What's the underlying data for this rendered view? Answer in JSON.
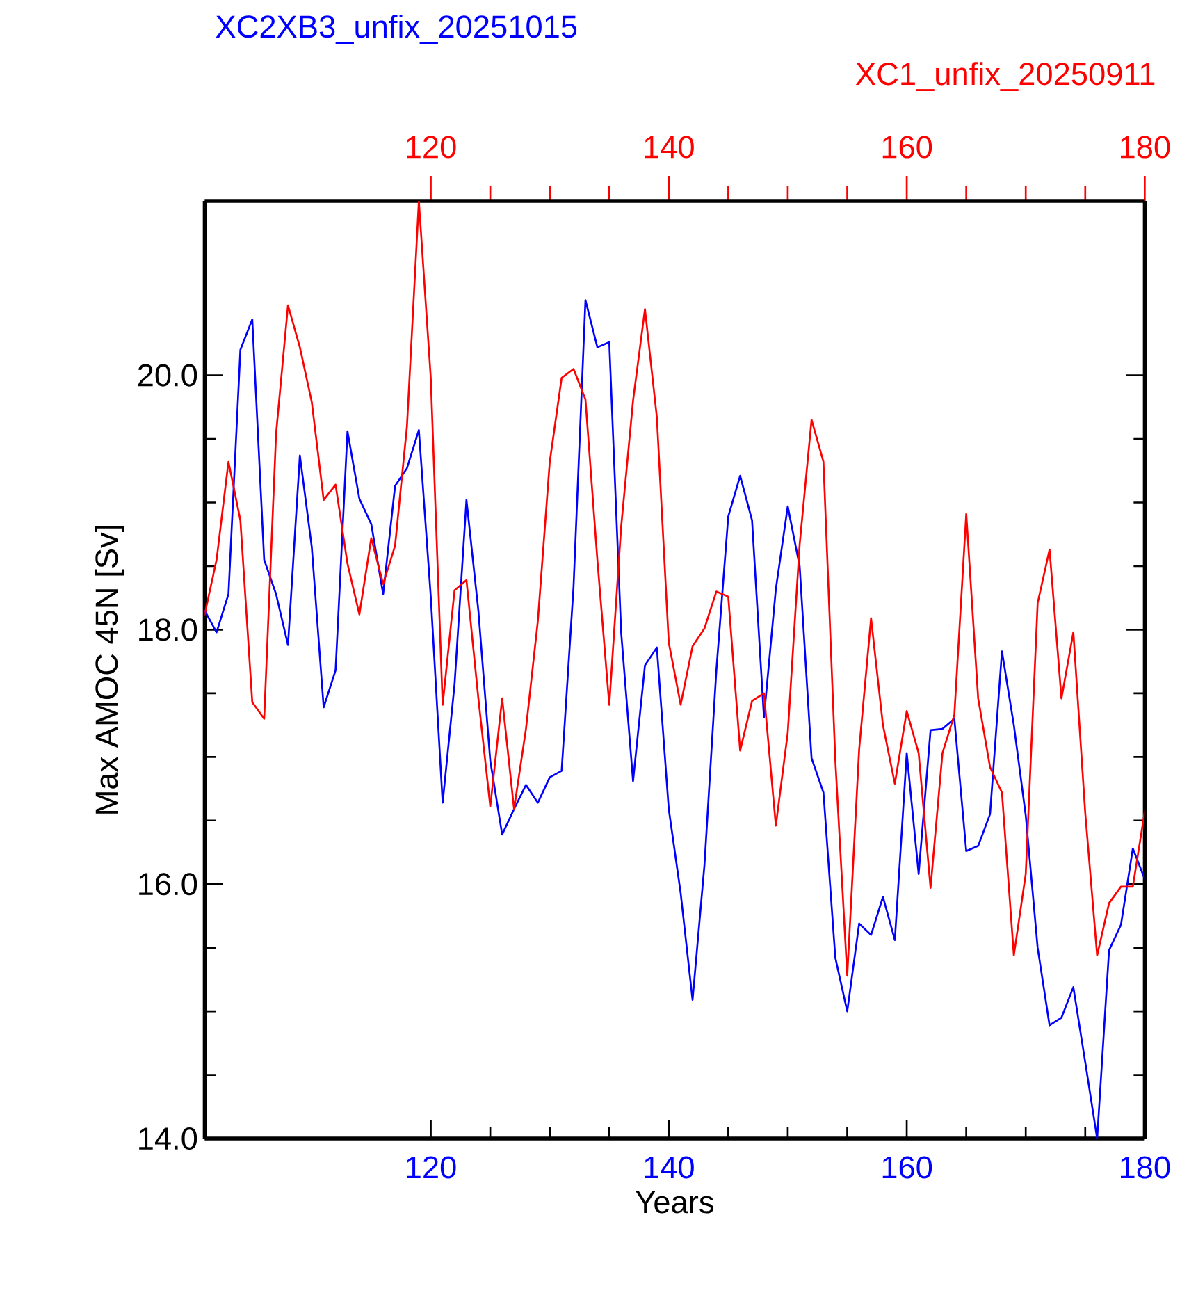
{
  "chart_data": {
    "type": "line",
    "xlabel": "Years",
    "ylabel": "Max AMOC 45N [Sv]",
    "x": [
      101,
      102,
      103,
      104,
      105,
      106,
      107,
      108,
      109,
      110,
      111,
      112,
      113,
      114,
      115,
      116,
      117,
      118,
      119,
      120,
      121,
      122,
      123,
      124,
      125,
      126,
      127,
      128,
      129,
      130,
      131,
      132,
      133,
      134,
      135,
      136,
      137,
      138,
      139,
      140,
      141,
      142,
      143,
      144,
      145,
      146,
      147,
      148,
      149,
      150,
      151,
      152,
      153,
      154,
      155,
      156,
      157,
      158,
      159,
      160,
      161,
      162,
      163,
      164,
      165,
      166,
      167,
      168,
      169,
      170,
      171,
      172,
      173,
      174,
      175,
      176,
      177,
      178,
      179,
      180
    ],
    "series": [
      {
        "name": "XC2XB3_unfix_20251015",
        "color": "#0000ff",
        "values": [
          18.15,
          17.98,
          18.28,
          20.2,
          20.44,
          18.55,
          18.28,
          17.88,
          19.37,
          18.65,
          17.39,
          17.68,
          19.56,
          19.03,
          18.83,
          18.28,
          19.13,
          19.27,
          19.57,
          18.26,
          16.64,
          17.57,
          19.02,
          18.15,
          16.97,
          16.39,
          16.59,
          16.78,
          16.64,
          16.84,
          16.89,
          18.34,
          20.59,
          20.22,
          20.26,
          17.98,
          16.81,
          17.72,
          17.86,
          16.59,
          15.93,
          15.09,
          16.15,
          17.68,
          18.89,
          19.21,
          18.86,
          17.31,
          18.32,
          18.97,
          18.5,
          16.99,
          16.72,
          15.42,
          15.0,
          15.69,
          15.6,
          15.9,
          15.56,
          17.03,
          16.08,
          17.21,
          17.22,
          17.3,
          16.26,
          16.3,
          16.55,
          17.83,
          17.25,
          16.54,
          15.5,
          14.89,
          14.95,
          15.19,
          14.6,
          14.0,
          15.48,
          15.68,
          16.28,
          16.04
        ]
      },
      {
        "name": "XC1_unfix_20250911",
        "color": "#ff0000",
        "axis": "x2",
        "values": [
          18.12,
          18.55,
          19.32,
          18.86,
          17.43,
          17.3,
          19.54,
          20.55,
          20.22,
          19.79,
          19.02,
          19.14,
          18.52,
          18.12,
          18.72,
          18.36,
          18.66,
          19.6,
          21.37,
          19.98,
          17.41,
          18.31,
          18.39,
          17.46,
          16.61,
          17.46,
          16.59,
          17.22,
          18.07,
          19.32,
          19.98,
          20.05,
          19.81,
          18.55,
          17.41,
          18.81,
          19.8,
          20.52,
          19.67,
          17.9,
          17.41,
          17.87,
          18.01,
          18.3,
          18.26,
          17.05,
          17.44,
          17.5,
          16.46,
          17.19,
          18.67,
          19.65,
          19.32,
          16.97,
          15.28,
          17.06,
          18.09,
          17.25,
          16.79,
          17.36,
          17.03,
          15.97,
          17.03,
          17.33,
          18.91,
          17.46,
          16.92,
          16.72,
          15.44,
          16.08,
          18.21,
          18.63,
          17.46,
          17.98,
          16.56,
          15.44,
          15.85,
          15.98,
          15.98,
          16.57
        ]
      }
    ],
    "xlim": [
      101,
      180
    ],
    "xticks": [
      120,
      140,
      160,
      180
    ],
    "x2lim": [
      101,
      180
    ],
    "x2ticks": [
      120,
      140,
      160,
      180
    ],
    "ylim": [
      14,
      21.37
    ],
    "yticks": [
      {
        "value": 14,
        "label": "14.0"
      },
      {
        "value": 16,
        "label": "16.0"
      },
      {
        "value": 18,
        "label": "18.0"
      },
      {
        "value": 20,
        "label": "20.0"
      }
    ],
    "grid": false,
    "legend": false,
    "marker": "none",
    "line_style": "solid"
  }
}
